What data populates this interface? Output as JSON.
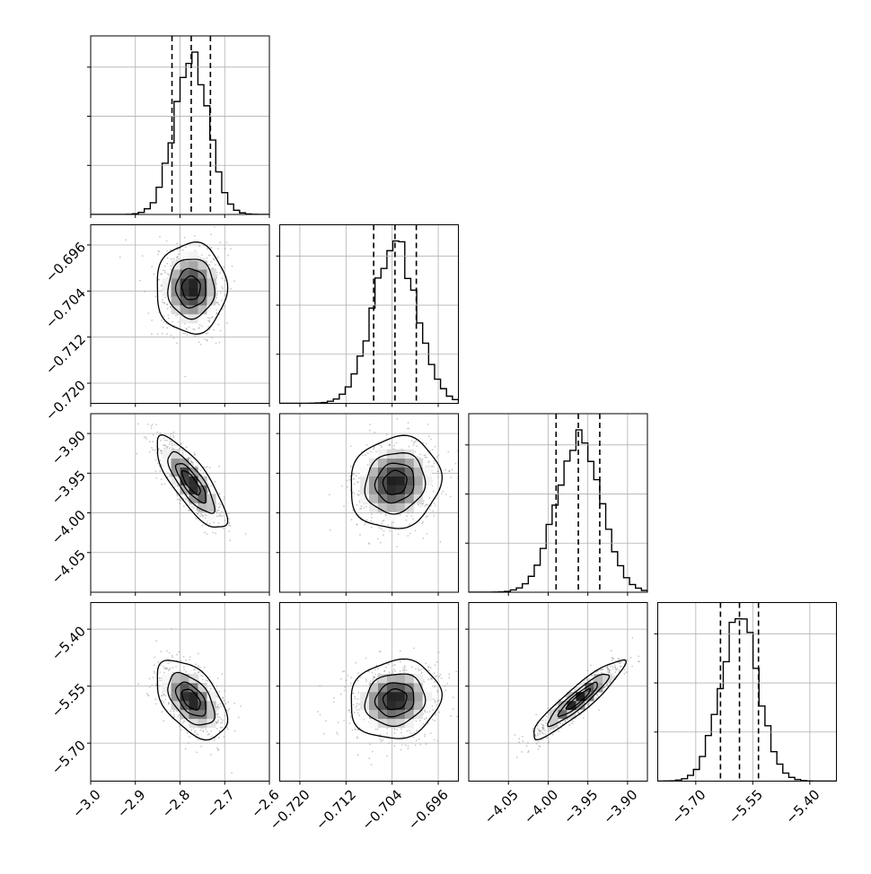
{
  "chart_data": {
    "type": "corner",
    "parameters": [
      {
        "name": "p0",
        "label": "",
        "mean": -2.775,
        "sd": 0.038,
        "range": [
          -3.0,
          -2.6
        ],
        "ticks": [
          -3.0,
          -2.9,
          -2.8,
          -2.7,
          -2.6
        ],
        "tick_labels": [
          "−3.0",
          "−2.9",
          "−2.8",
          "−2.7",
          "−2.6"
        ],
        "quantiles": [
          -2.818,
          -2.775,
          -2.732
        ]
      },
      {
        "name": "p1",
        "label": "",
        "mean": -0.7035,
        "sd": 0.0038,
        "range": [
          -0.7235,
          -0.6925
        ],
        "ticks": [
          -0.72,
          -0.712,
          -0.704,
          -0.696
        ],
        "tick_labels": [
          "−0.720",
          "−0.712",
          "−0.704",
          "−0.696"
        ],
        "quantiles": [
          -0.7072,
          -0.7035,
          -0.6998
        ]
      },
      {
        "name": "p2",
        "label": "",
        "mean": -3.962,
        "sd": 0.028,
        "range": [
          -4.1,
          -3.875
        ],
        "ticks": [
          -4.05,
          -4.0,
          -3.95,
          -3.9
        ],
        "tick_labels": [
          "−4.05",
          "−4.00",
          "−3.95",
          "−3.90"
        ],
        "quantiles": [
          -3.99,
          -3.962,
          -3.935
        ]
      },
      {
        "name": "p3",
        "label": "",
        "mean": -5.585,
        "sd": 0.05,
        "range": [
          -5.8,
          -5.33
        ],
        "ticks": [
          -5.7,
          -5.55,
          -5.4
        ],
        "tick_labels": [
          "−5.70",
          "−5.55",
          "−5.40"
        ],
        "quantiles": [
          -5.635,
          -5.585,
          -5.535
        ]
      }
    ],
    "correlations": [
      {
        "pair": [
          "p0",
          "p1"
        ],
        "rho": 0.0
      },
      {
        "pair": [
          "p0",
          "p2"
        ],
        "rho": -0.8
      },
      {
        "pair": [
          "p0",
          "p3"
        ],
        "rho": -0.5
      },
      {
        "pair": [
          "p1",
          "p2"
        ],
        "rho": 0.1
      },
      {
        "pair": [
          "p1",
          "p3"
        ],
        "rho": 0.1
      },
      {
        "pair": [
          "p2",
          "p3"
        ],
        "rho": 0.92
      }
    ],
    "contour_levels_sigma": [
      0.5,
      1.0,
      1.5,
      2.0
    ],
    "quantile_line_style": "dashed",
    "histogram_style": "step",
    "scatter_color": "#888888",
    "grid": true,
    "title": "",
    "xlabel": "",
    "ylabel": ""
  }
}
